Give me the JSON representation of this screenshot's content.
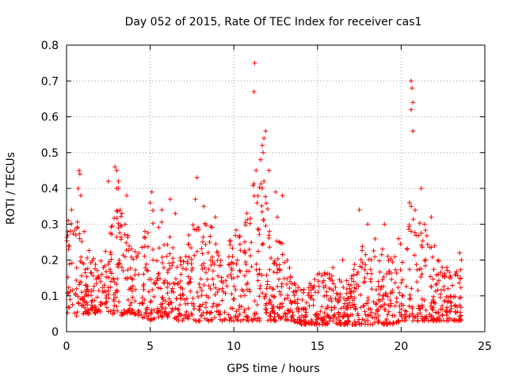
{
  "chart_data": {
    "type": "scatter",
    "title": "Day 052 of 2015, Rate Of TEC Index for receiver cas1",
    "xlabel": "GPS time / hours",
    "ylabel": "ROTI / TECUs",
    "xlim": [
      0,
      25
    ],
    "ylim": [
      0,
      0.8
    ],
    "xticks": [
      0,
      5,
      10,
      15,
      20,
      25
    ],
    "xtick_labels": [
      "0",
      "5",
      "10",
      "15",
      "20",
      "25"
    ],
    "yticks": [
      0,
      0.1,
      0.2,
      0.3,
      0.4,
      0.5,
      0.6,
      0.7,
      0.8
    ],
    "ytick_labels": [
      "0",
      "0.1",
      "0.2",
      "0.3",
      "0.4",
      "0.5",
      "0.6",
      "0.7",
      "0.8"
    ],
    "grid": true,
    "marker": "plus",
    "color": "#ff0000",
    "approx_envelope": {
      "x": [
        0,
        0.5,
        1,
        1.5,
        2,
        2.5,
        3,
        3.5,
        4,
        4.5,
        5,
        5.5,
        6,
        6.5,
        7,
        7.5,
        8,
        8.5,
        9,
        9.5,
        10,
        10.5,
        11,
        11.5,
        12,
        12.5,
        13,
        13.5,
        14,
        14.5,
        15,
        15.5,
        16,
        16.5,
        17,
        17.5,
        18,
        18.5,
        19,
        19.5,
        20,
        20.5,
        21,
        21.5,
        22,
        22.5,
        23,
        23.5
      ],
      "typical_max": [
        0.28,
        0.35,
        0.3,
        0.2,
        0.22,
        0.25,
        0.4,
        0.3,
        0.22,
        0.25,
        0.38,
        0.32,
        0.3,
        0.22,
        0.24,
        0.3,
        0.32,
        0.3,
        0.28,
        0.25,
        0.28,
        0.3,
        0.38,
        0.5,
        0.35,
        0.3,
        0.25,
        0.15,
        0.12,
        0.14,
        0.16,
        0.18,
        0.2,
        0.15,
        0.18,
        0.25,
        0.22,
        0.28,
        0.22,
        0.2,
        0.3,
        0.32,
        0.35,
        0.3,
        0.22,
        0.2,
        0.2,
        0.18
      ],
      "typical_min": [
        0.04,
        0.04,
        0.05,
        0.05,
        0.05,
        0.05,
        0.04,
        0.05,
        0.05,
        0.04,
        0.03,
        0.04,
        0.04,
        0.03,
        0.03,
        0.03,
        0.03,
        0.03,
        0.03,
        0.03,
        0.03,
        0.03,
        0.03,
        0.03,
        0.03,
        0.03,
        0.03,
        0.03,
        0.02,
        0.02,
        0.02,
        0.02,
        0.02,
        0.02,
        0.02,
        0.02,
        0.02,
        0.02,
        0.02,
        0.02,
        0.03,
        0.03,
        0.03,
        0.03,
        0.03,
        0.03,
        0.03,
        0.03
      ]
    },
    "points": [
      [
        0.75,
        0.45
      ],
      [
        0.8,
        0.44
      ],
      [
        0.7,
        0.4
      ],
      [
        0.85,
        0.38
      ],
      [
        0.3,
        0.34
      ],
      [
        0.1,
        0.31
      ],
      [
        2.5,
        0.42
      ],
      [
        2.9,
        0.46
      ],
      [
        3.0,
        0.45
      ],
      [
        3.1,
        0.42
      ],
      [
        3.0,
        0.4
      ],
      [
        3.1,
        0.4
      ],
      [
        3.2,
        0.34
      ],
      [
        3.6,
        0.38
      ],
      [
        3.5,
        0.3
      ],
      [
        5.1,
        0.39
      ],
      [
        5.0,
        0.36
      ],
      [
        5.7,
        0.34
      ],
      [
        6.2,
        0.37
      ],
      [
        6.5,
        0.33
      ],
      [
        7.8,
        0.43
      ],
      [
        7.7,
        0.37
      ],
      [
        8.2,
        0.35
      ],
      [
        8.9,
        0.32
      ],
      [
        11.25,
        0.75
      ],
      [
        11.2,
        0.67
      ],
      [
        11.9,
        0.56
      ],
      [
        11.8,
        0.54
      ],
      [
        11.7,
        0.52
      ],
      [
        11.75,
        0.5
      ],
      [
        11.6,
        0.48
      ],
      [
        12.1,
        0.45
      ],
      [
        11.8,
        0.42
      ],
      [
        11.7,
        0.4
      ],
      [
        12.5,
        0.39
      ],
      [
        12.9,
        0.38
      ],
      [
        12.6,
        0.32
      ],
      [
        17.5,
        0.34
      ],
      [
        18.0,
        0.3
      ],
      [
        19.0,
        0.3
      ],
      [
        20.6,
        0.7
      ],
      [
        20.65,
        0.68
      ],
      [
        20.7,
        0.64
      ],
      [
        20.6,
        0.62
      ],
      [
        20.7,
        0.56
      ],
      [
        21.2,
        0.4
      ],
      [
        20.5,
        0.36
      ],
      [
        20.6,
        0.35
      ],
      [
        21.8,
        0.32
      ],
      [
        21.4,
        0.3
      ],
      [
        22.0,
        0.24
      ],
      [
        23.5,
        0.22
      ],
      [
        23.6,
        0.2
      ],
      [
        16.5,
        0.2
      ]
    ]
  }
}
